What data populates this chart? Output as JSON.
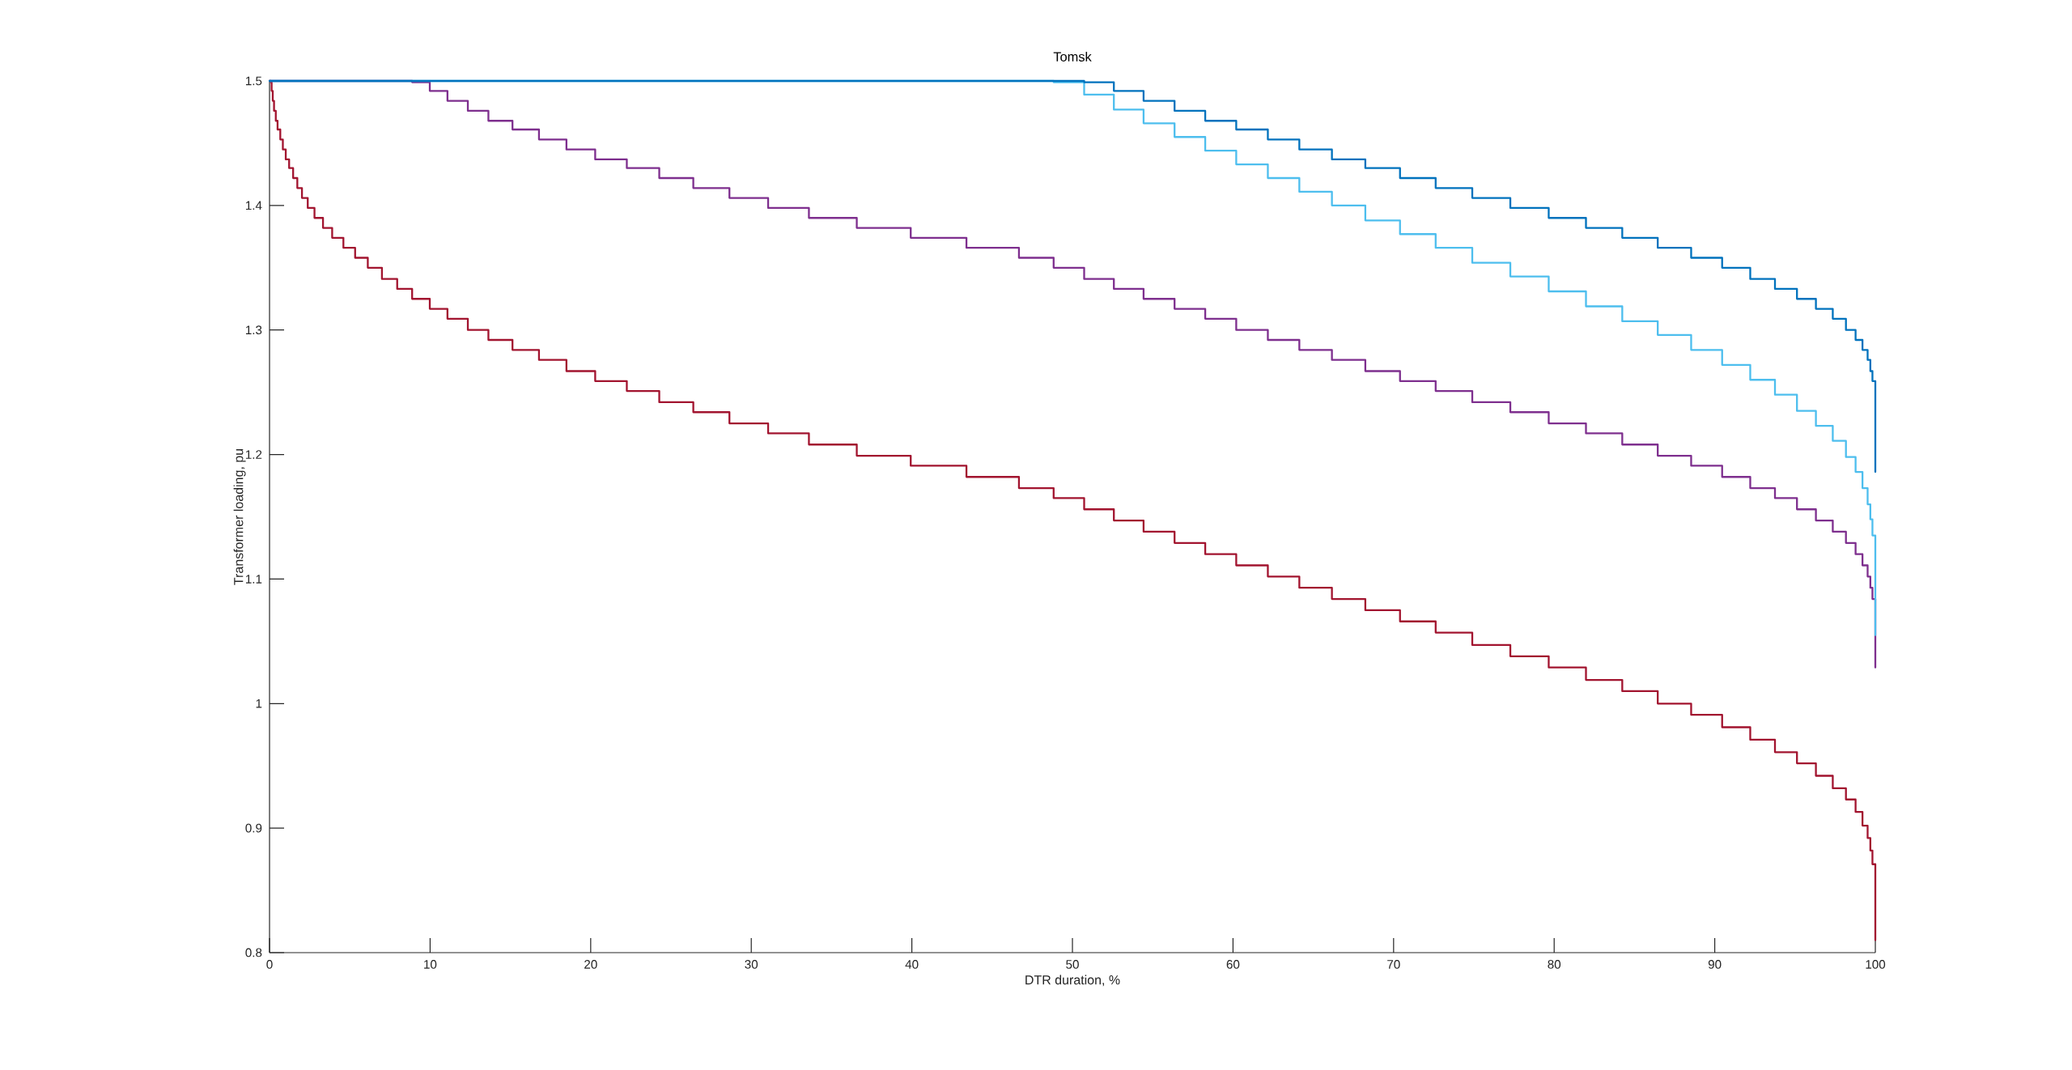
{
  "chart_data": {
    "type": "step",
    "title": "Tomsk",
    "xlabel": "DTR duration, %",
    "ylabel": "Transformer loading, pu",
    "xlim": [
      0,
      100
    ],
    "ylim": [
      0.8,
      1.5
    ],
    "xticks": [
      0,
      10,
      20,
      30,
      40,
      50,
      60,
      70,
      80,
      90,
      100
    ],
    "yticks": [
      0.8,
      0.9,
      1,
      1.1,
      1.2,
      1.3,
      1.4,
      1.5
    ],
    "series": [
      {
        "color": "#a2142f",
        "x": [
          0,
          0.07,
          0.13,
          0.2,
          0.28,
          0.39,
          0.5,
          0.67,
          0.83,
          1.01,
          1.22,
          1.47,
          1.73,
          2.02,
          2.38,
          2.8,
          3.33,
          3.9,
          4.6,
          5.33,
          6.12,
          7.0,
          7.95,
          8.88,
          9.98,
          11.08,
          12.35,
          13.63,
          15.13,
          16.78,
          18.49,
          20.28,
          22.25,
          24.27,
          26.39,
          28.64,
          31.05,
          33.59,
          36.57,
          39.93,
          43.4,
          46.67,
          48.83,
          50.73,
          52.58,
          54.43,
          56.36,
          58.27,
          60.2,
          62.17,
          64.13,
          66.16,
          68.24,
          70.4,
          72.62,
          74.9,
          77.27,
          79.66,
          81.98,
          84.24,
          86.45,
          88.53,
          90.46,
          92.21,
          93.75,
          95.12,
          96.3,
          97.35,
          98.17,
          98.77,
          99.2,
          99.52,
          99.69,
          99.82,
          100
        ],
        "values": [
          1.5,
          1.499,
          1.492,
          1.484,
          1.476,
          1.468,
          1.461,
          1.453,
          1.445,
          1.437,
          1.43,
          1.422,
          1.414,
          1.406,
          1.398,
          1.39,
          1.382,
          1.374,
          1.366,
          1.358,
          1.35,
          1.341,
          1.333,
          1.325,
          1.317,
          1.309,
          1.3,
          1.292,
          1.284,
          1.276,
          1.267,
          1.259,
          1.251,
          1.242,
          1.234,
          1.225,
          1.217,
          1.208,
          1.199,
          1.191,
          1.182,
          1.173,
          1.165,
          1.156,
          1.147,
          1.138,
          1.129,
          1.12,
          1.111,
          1.102,
          1.093,
          1.084,
          1.075,
          1.066,
          1.057,
          1.047,
          1.038,
          1.029,
          1.019,
          1.01,
          1,
          0.991,
          0.981,
          0.971,
          0.961,
          0.952,
          0.942,
          0.932,
          0.923,
          0.913,
          0.902,
          0.892,
          0.882,
          0.871,
          0.81
        ]
      },
      {
        "color": "#7e2f8e",
        "x": [
          0,
          8.88,
          9.98,
          11.08,
          12.35,
          13.63,
          15.13,
          16.78,
          18.49,
          20.28,
          22.25,
          24.27,
          26.39,
          28.64,
          31.05,
          33.59,
          36.57,
          39.93,
          43.4,
          46.67,
          48.83,
          50.73,
          52.58,
          54.43,
          56.36,
          58.27,
          60.2,
          62.17,
          64.13,
          66.16,
          68.24,
          70.4,
          72.62,
          74.9,
          77.27,
          79.66,
          81.98,
          84.24,
          86.45,
          88.53,
          90.46,
          92.21,
          93.75,
          95.12,
          96.3,
          97.35,
          98.17,
          98.77,
          99.2,
          99.52,
          99.69,
          99.82,
          100
        ],
        "values": [
          1.5,
          1.499,
          1.492,
          1.484,
          1.476,
          1.468,
          1.461,
          1.453,
          1.445,
          1.437,
          1.43,
          1.422,
          1.414,
          1.406,
          1.398,
          1.39,
          1.382,
          1.374,
          1.366,
          1.358,
          1.35,
          1.341,
          1.333,
          1.325,
          1.317,
          1.309,
          1.3,
          1.292,
          1.284,
          1.276,
          1.267,
          1.259,
          1.251,
          1.242,
          1.234,
          1.225,
          1.217,
          1.208,
          1.199,
          1.191,
          1.182,
          1.173,
          1.165,
          1.156,
          1.147,
          1.138,
          1.129,
          1.12,
          1.111,
          1.102,
          1.093,
          1.084,
          1.029
        ]
      },
      {
        "color": "#4dbeee",
        "x": [
          0,
          48.83,
          50.73,
          52.58,
          54.43,
          56.36,
          58.27,
          60.2,
          62.17,
          64.13,
          66.16,
          68.24,
          70.4,
          72.62,
          74.9,
          77.27,
          79.66,
          81.98,
          84.24,
          86.45,
          88.53,
          90.46,
          92.21,
          93.75,
          95.12,
          96.3,
          97.35,
          98.17,
          98.77,
          99.2,
          99.52,
          99.69,
          99.82,
          100
        ],
        "values": [
          1.5,
          1.499,
          1.489,
          1.477,
          1.466,
          1.455,
          1.444,
          1.433,
          1.422,
          1.411,
          1.4,
          1.388,
          1.377,
          1.366,
          1.354,
          1.343,
          1.331,
          1.319,
          1.307,
          1.296,
          1.284,
          1.272,
          1.26,
          1.248,
          1.235,
          1.223,
          1.211,
          1.198,
          1.186,
          1.173,
          1.16,
          1.148,
          1.135,
          1.055
        ]
      },
      {
        "color": "#0072bd",
        "x": [
          0,
          50.73,
          52.58,
          54.43,
          56.36,
          58.27,
          60.2,
          62.17,
          64.13,
          66.16,
          68.24,
          70.4,
          72.62,
          74.9,
          77.27,
          79.66,
          81.98,
          84.24,
          86.45,
          88.53,
          90.46,
          92.21,
          93.75,
          95.12,
          96.3,
          97.35,
          98.17,
          98.77,
          99.2,
          99.52,
          99.69,
          99.82,
          100
        ],
        "values": [
          1.5,
          1.499,
          1.492,
          1.484,
          1.476,
          1.468,
          1.461,
          1.453,
          1.445,
          1.437,
          1.43,
          1.422,
          1.414,
          1.406,
          1.398,
          1.39,
          1.382,
          1.374,
          1.366,
          1.358,
          1.35,
          1.341,
          1.333,
          1.325,
          1.317,
          1.309,
          1.3,
          1.292,
          1.284,
          1.276,
          1.267,
          1.259,
          1.186
        ]
      }
    ]
  }
}
